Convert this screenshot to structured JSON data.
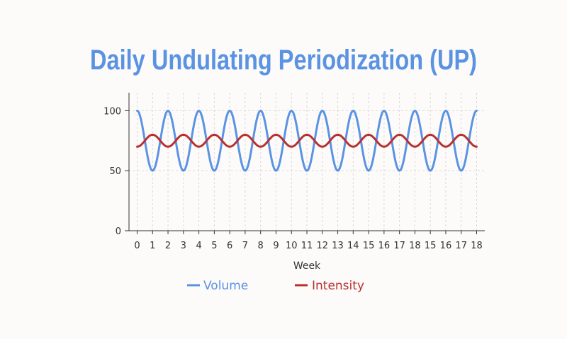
{
  "chart_data": {
    "type": "line",
    "title": "Daily Undulating Periodization (UP)",
    "xlabel": "Week",
    "ylabel": "",
    "x_tick_labels": [
      "0",
      "1",
      "2",
      "3",
      "4",
      "5",
      "6",
      "7",
      "8",
      "9",
      "10",
      "11",
      "12",
      "13",
      "14",
      "15",
      "16",
      "17",
      "18",
      "15",
      "16",
      "17",
      "18"
    ],
    "ylim": [
      0,
      115
    ],
    "y_ticks": [
      0,
      50,
      100
    ],
    "grid": true,
    "legend_position": "bottom",
    "series": [
      {
        "name": "Volume",
        "color": "#5b93e3",
        "values": [
          100,
          50,
          100,
          50,
          100,
          50,
          100,
          50,
          100,
          50,
          100,
          50,
          100,
          50,
          100,
          50,
          100,
          50,
          100,
          50,
          100,
          50,
          100
        ]
      },
      {
        "name": "Intensity",
        "color": "#b8312f",
        "values": [
          70,
          80,
          70,
          80,
          70,
          80,
          70,
          80,
          70,
          80,
          70,
          80,
          70,
          80,
          70,
          80,
          70,
          80,
          70,
          80,
          70,
          80,
          70
        ]
      }
    ]
  }
}
